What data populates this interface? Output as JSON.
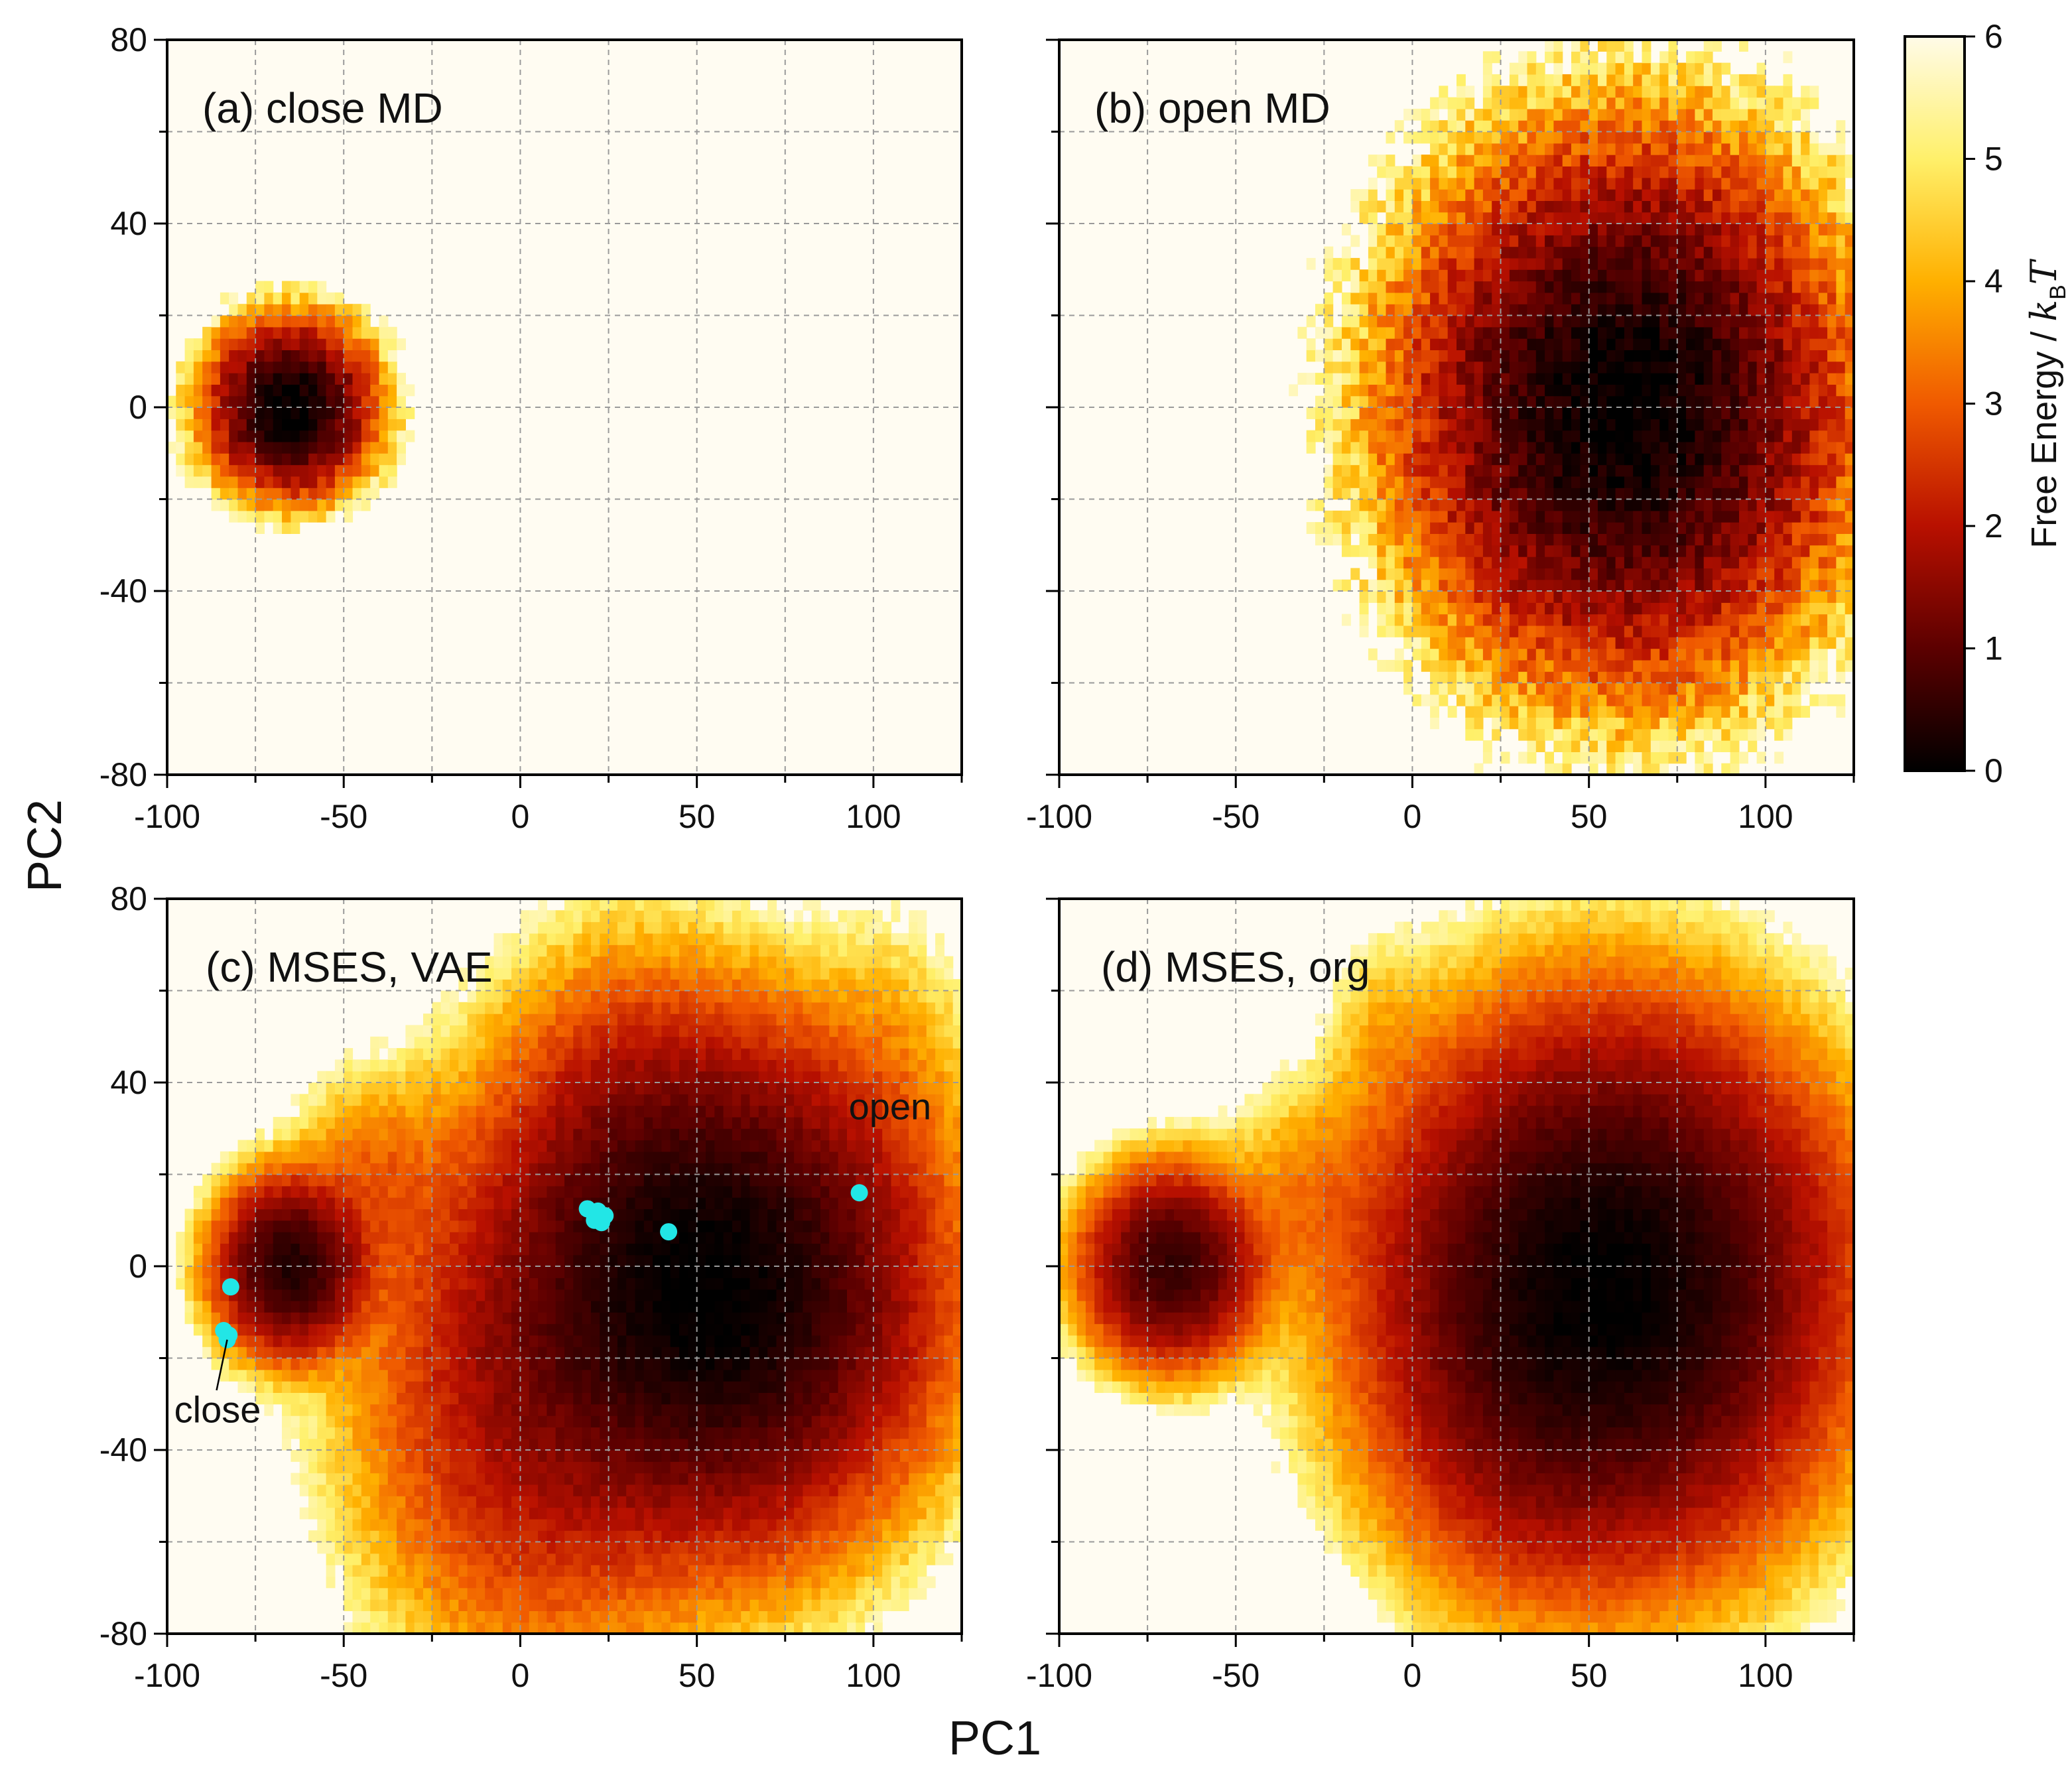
{
  "chart_data": {
    "type": "heatmap",
    "xlabel": "PC1",
    "ylabel": "PC2",
    "xlim": [
      -100,
      125
    ],
    "ylim": [
      -80,
      80
    ],
    "xticks": [
      -100,
      -50,
      0,
      50,
      100
    ],
    "yticks": [
      -80,
      -40,
      0,
      40,
      80
    ],
    "xtick_labels": [
      "-100",
      "-50",
      "0",
      "50",
      "100"
    ],
    "ytick_labels": [
      "-80",
      "-40",
      "0",
      "40",
      "80"
    ],
    "grid": true,
    "colorbar": {
      "label": "Free Energy / ",
      "label_kb": "k",
      "label_sub": "B",
      "label_T": "T",
      "range": [
        0,
        6
      ],
      "ticks": [
        0,
        1,
        2,
        3,
        4,
        5,
        6
      ],
      "tick_labels": [
        "0",
        "1",
        "2",
        "3",
        "4",
        "5",
        "6"
      ],
      "colormap": "afmhot",
      "colors": [
        "#000000",
        "#5c0000",
        "#b81000",
        "#f05a00",
        "#ffb000",
        "#fff06a",
        "#fffbe8"
      ]
    },
    "panels": [
      {
        "label": "(a) close MD",
        "basins": [
          {
            "cx": -65,
            "cy": 0,
            "sx": 10,
            "sy": 8,
            "depth": 6.2
          }
        ],
        "noise": 1.2,
        "cutoff": 5.7
      },
      {
        "label": "(b) open MD",
        "basins": [
          {
            "cx": 60,
            "cy": 0,
            "sx": 26,
            "sy": 24,
            "depth": 6.8
          }
        ],
        "noise": 1.5,
        "cutoff": 5.7
      },
      {
        "label": "(c) MSES, VAE",
        "basins": [
          {
            "cx": 55,
            "cy": -5,
            "sx": 28,
            "sy": 25,
            "depth": 6.6
          },
          {
            "cx": -65,
            "cy": 0,
            "sx": 10,
            "sy": 9,
            "depth": 6.2
          },
          {
            "cx": 5,
            "cy": -25,
            "sx": 25,
            "sy": 30,
            "depth": 4.8
          },
          {
            "cx": 30,
            "cy": 25,
            "sx": 18,
            "sy": 22,
            "depth": 4.2
          },
          {
            "cx": -42,
            "cy": 18,
            "sx": 12,
            "sy": 12,
            "depth": 3.4
          },
          {
            "cx": 105,
            "cy": 40,
            "sx": 14,
            "sy": 20,
            "depth": 2.4
          }
        ],
        "noise": 0.6,
        "cutoff": 5.6,
        "annotations": [
          {
            "text": "open",
            "x": 93,
            "y": 32
          },
          {
            "text": "close",
            "x": -98,
            "y": -34
          }
        ],
        "pointer_line": {
          "x1": -83,
          "y1": -16,
          "x2": -86,
          "y2": -27
        },
        "markers": {
          "color": "#22e6e6",
          "points": [
            {
              "x": 19,
              "y": 12.5
            },
            {
              "x": 21,
              "y": 10
            },
            {
              "x": 22,
              "y": 12
            },
            {
              "x": 24,
              "y": 11
            },
            {
              "x": 23,
              "y": 9.5
            },
            {
              "x": 42,
              "y": 7.5
            },
            {
              "x": 96,
              "y": 16
            },
            {
              "x": -82,
              "y": -4.5
            },
            {
              "x": -84,
              "y": -14
            },
            {
              "x": -83,
              "y": -16
            },
            {
              "x": -82.5,
              "y": -15
            }
          ]
        }
      },
      {
        "label": "(d) MSES, org",
        "basins": [
          {
            "cx": 55,
            "cy": -5,
            "sx": 30,
            "sy": 27,
            "depth": 7.2
          },
          {
            "cx": 30,
            "cy": -30,
            "sx": 18,
            "sy": 22,
            "depth": 4.6
          },
          {
            "cx": -68,
            "cy": 0,
            "sx": 12,
            "sy": 10,
            "depth": 6.6
          },
          {
            "cx": -28,
            "cy": 15,
            "sx": 14,
            "sy": 12,
            "depth": 3.6
          },
          {
            "cx": -8,
            "cy": 50,
            "sx": 8,
            "sy": 12,
            "depth": 2.8
          },
          {
            "cx": 110,
            "cy": 8,
            "sx": 12,
            "sy": 14,
            "depth": 3.0
          }
        ],
        "noise": 0.5,
        "cutoff": 5.6
      }
    ]
  }
}
